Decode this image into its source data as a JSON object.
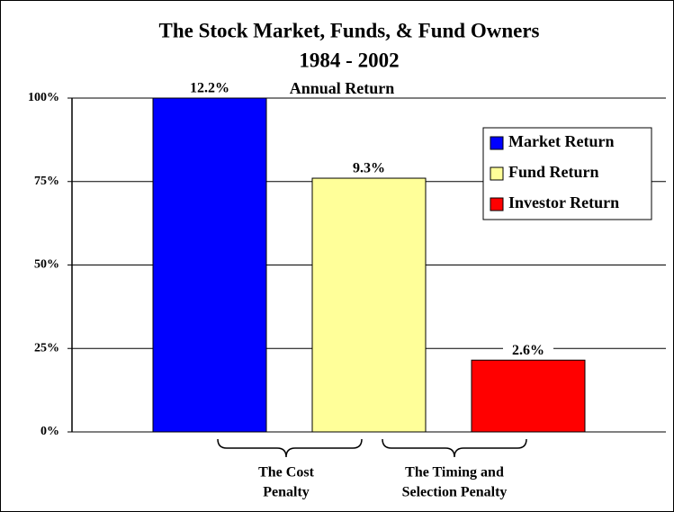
{
  "chart_data": {
    "type": "bar",
    "title": "The Stock Market, Funds, & Fund Owners",
    "subtitle": "1984 - 2002",
    "value_caption": "Annual Return",
    "series": [
      {
        "name": "Market Return",
        "color": "#0000ff",
        "values": [
          100
        ],
        "label": "12.2%"
      },
      {
        "name": "Fund Return",
        "color": "#ffff99",
        "values": [
          76
        ],
        "label": "9.3%"
      },
      {
        "name": "Investor Return",
        "color": "#ff0000",
        "values": [
          21.5
        ],
        "label": "2.6%"
      }
    ],
    "ylim": [
      0,
      100
    ],
    "yticks": [
      {
        "value": 0,
        "label": "0%"
      },
      {
        "value": 25,
        "label": "25%"
      },
      {
        "value": 50,
        "label": "50%"
      },
      {
        "value": 75,
        "label": "75%"
      },
      {
        "value": 100,
        "label": "100%"
      }
    ],
    "grid": true,
    "legend": "upper right",
    "annotations": [
      {
        "lines": [
          "The Cost",
          "Penalty"
        ]
      },
      {
        "lines": [
          "The Timing and",
          "Selection Penalty"
        ]
      }
    ]
  }
}
